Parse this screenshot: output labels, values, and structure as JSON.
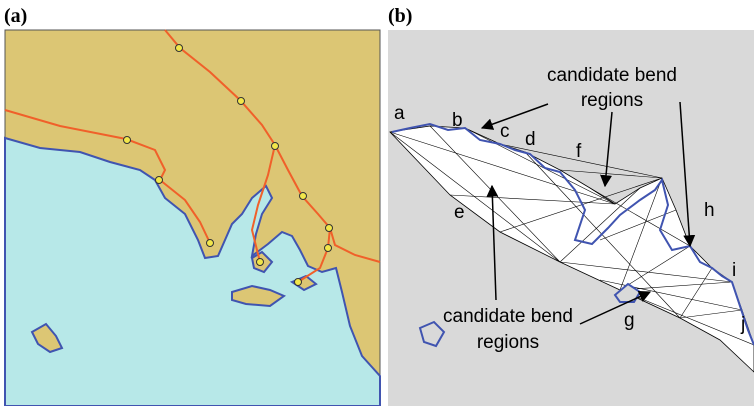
{
  "panels": [
    {
      "label": "(a)"
    },
    {
      "label": "(b)",
      "annotations": [
        {
          "lines": [
            "candidate bend",
            "regions"
          ]
        },
        {
          "lines": [
            "candidate bend",
            "regions"
          ]
        }
      ],
      "letters": [
        "a",
        "b",
        "c",
        "d",
        "e",
        "f",
        "g",
        "h",
        "i",
        "j"
      ]
    }
  ]
}
